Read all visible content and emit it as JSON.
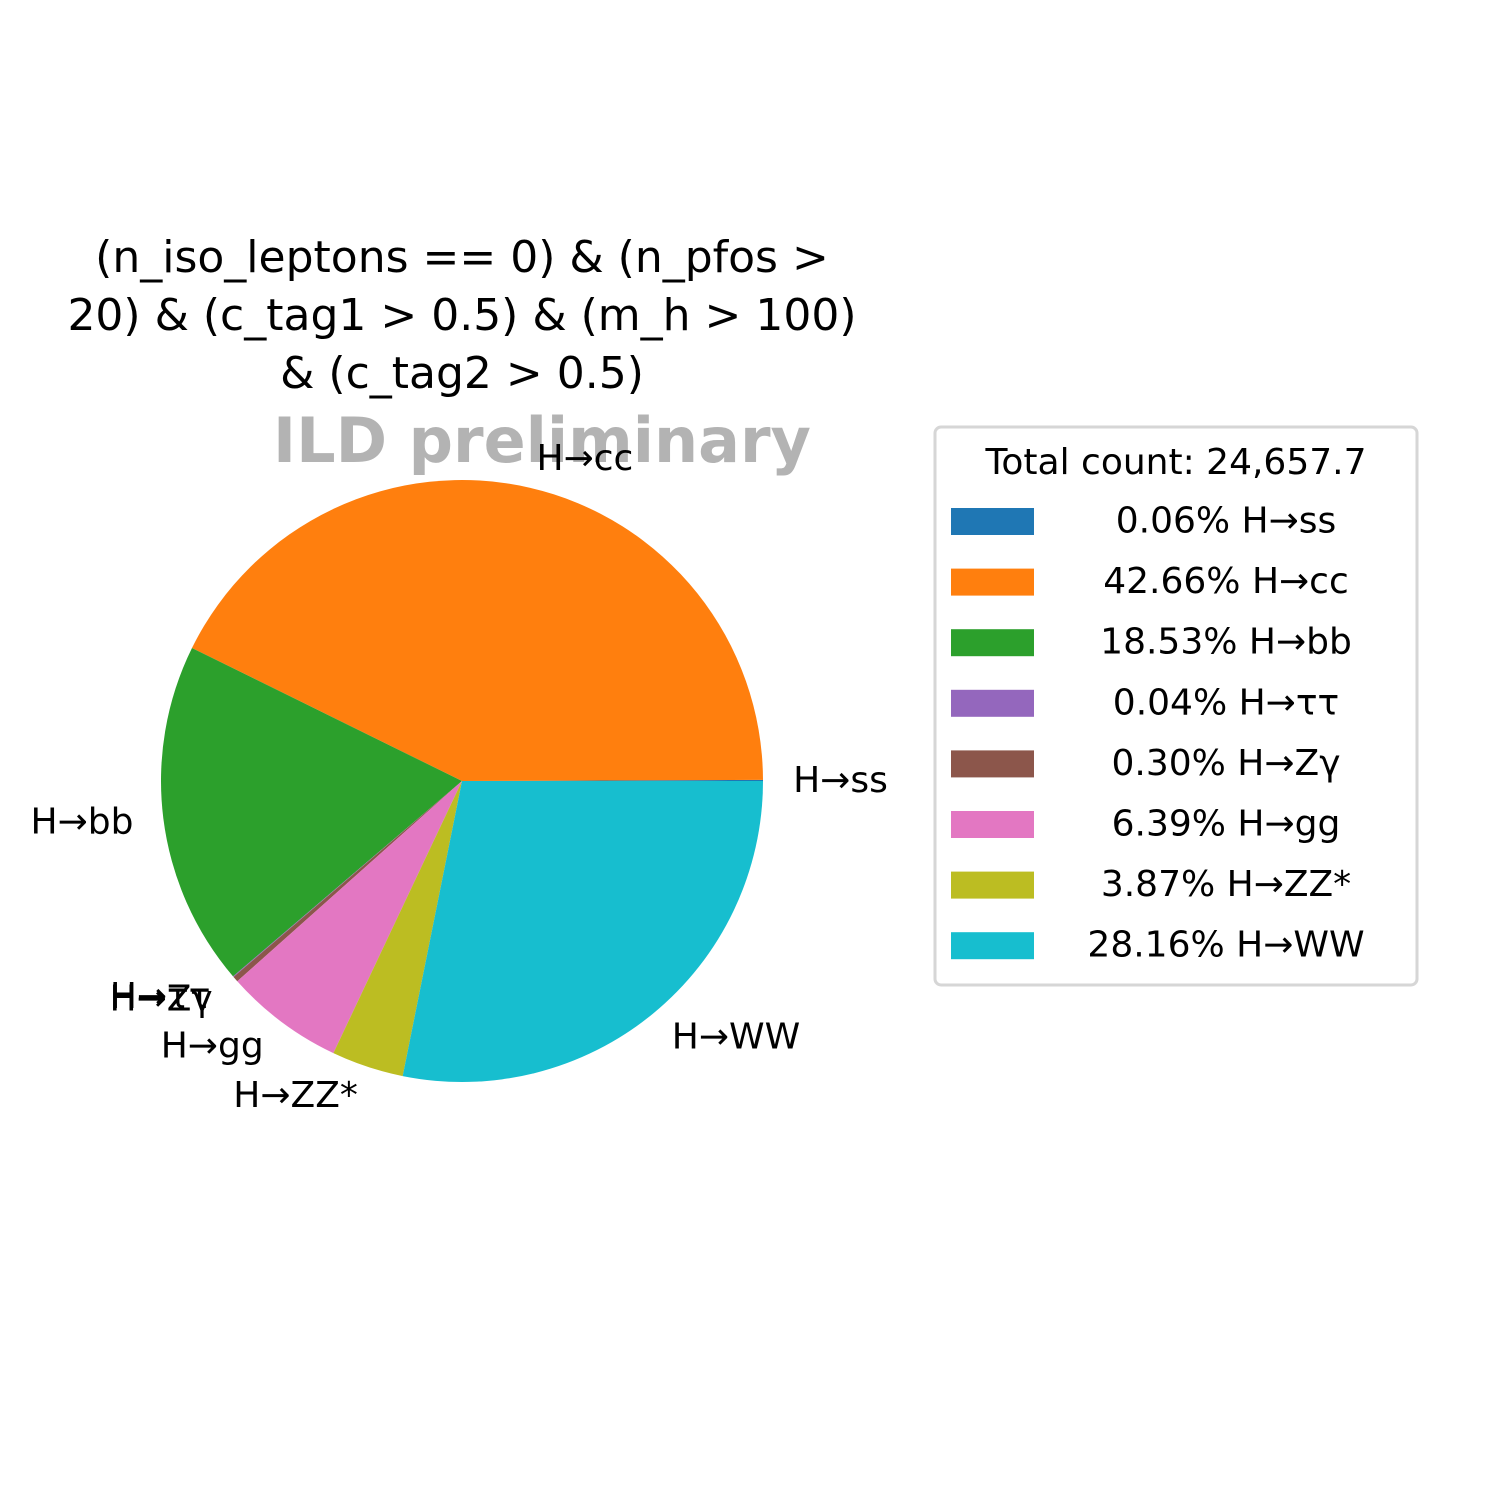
{
  "chart_data": {
    "type": "pie",
    "title_lines": [
      "(n_iso_leptons == 0) & (n_pfos >",
      "20) & (c_tag1 > 0.5) & (m_h > 100)",
      "& (c_tag2 > 0.5)"
    ],
    "watermark": "ILD preliminary",
    "legend_title": "Total count: 24,657.7",
    "legend_placement": "right",
    "start_angle_deg": 0,
    "direction": "counterclockwise",
    "slices": [
      {
        "label": "H→ss",
        "percent": 0.06,
        "percent_text": "0.06%",
        "color": "#1f77b4"
      },
      {
        "label": "H→cc",
        "percent": 42.66,
        "percent_text": "42.66%",
        "color": "#ff7f0e"
      },
      {
        "label": "H→bb",
        "percent": 18.53,
        "percent_text": "18.53%",
        "color": "#2ca02c"
      },
      {
        "label": "H→ττ",
        "percent": 0.04,
        "percent_text": "0.04%",
        "color": "#9467bd"
      },
      {
        "label": "H→Zγ",
        "percent": 0.3,
        "percent_text": "0.30%",
        "color": "#8c564b"
      },
      {
        "label": "H→gg",
        "percent": 6.39,
        "percent_text": "6.39%",
        "color": "#e377c2"
      },
      {
        "label": "H→ZZ*",
        "percent": 3.87,
        "percent_text": "3.87%",
        "color": "#bcbd22"
      },
      {
        "label": "H→WW",
        "percent": 28.16,
        "percent_text": "28.16%",
        "color": "#17becf"
      }
    ]
  }
}
